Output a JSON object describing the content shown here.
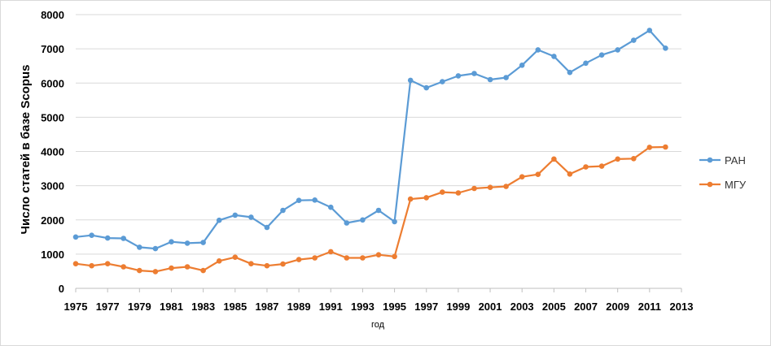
{
  "chart_data": {
    "type": "line",
    "xlabel": "год",
    "ylabel": "Число статей в базе Scopus",
    "ylim": [
      0,
      8000
    ],
    "yticks": [
      0,
      1000,
      2000,
      3000,
      4000,
      5000,
      6000,
      7000,
      8000
    ],
    "xlim": [
      1975,
      2013
    ],
    "xticks": [
      1975,
      1977,
      1979,
      1981,
      1983,
      1985,
      1987,
      1989,
      1991,
      1993,
      1995,
      1997,
      1999,
      2001,
      2003,
      2005,
      2007,
      2009,
      2011,
      2013
    ],
    "grid": "horizontal",
    "legend_position": "right",
    "x": [
      1975,
      1976,
      1977,
      1978,
      1979,
      1980,
      1981,
      1982,
      1983,
      1984,
      1985,
      1986,
      1987,
      1988,
      1989,
      1990,
      1991,
      1992,
      1993,
      1994,
      1995,
      1996,
      1997,
      1998,
      1999,
      2000,
      2001,
      2002,
      2003,
      2004,
      2005,
      2006,
      2007,
      2008,
      2009,
      2010,
      2011,
      2012
    ],
    "series": [
      {
        "name": "РАН",
        "color": "#5b9bd5",
        "values": [
          1500,
          1550,
          1470,
          1460,
          1200,
          1160,
          1360,
          1320,
          1340,
          1990,
          2140,
          2080,
          1780,
          2280,
          2570,
          2580,
          2370,
          1910,
          2000,
          2280,
          1950,
          6080,
          5860,
          6040,
          6210,
          6280,
          6100,
          6160,
          6520,
          6970,
          6780,
          6310,
          6580,
          6820,
          6970,
          7250,
          7540,
          7020
        ]
      },
      {
        "name": "МГУ",
        "color": "#ed7d31",
        "values": [
          720,
          660,
          720,
          630,
          520,
          490,
          590,
          630,
          520,
          800,
          910,
          720,
          660,
          710,
          840,
          890,
          1070,
          890,
          890,
          980,
          930,
          2610,
          2650,
          2810,
          2790,
          2920,
          2950,
          2980,
          3260,
          3330,
          3780,
          3340,
          3550,
          3570,
          3780,
          3790,
          4120,
          4130
        ]
      }
    ]
  }
}
